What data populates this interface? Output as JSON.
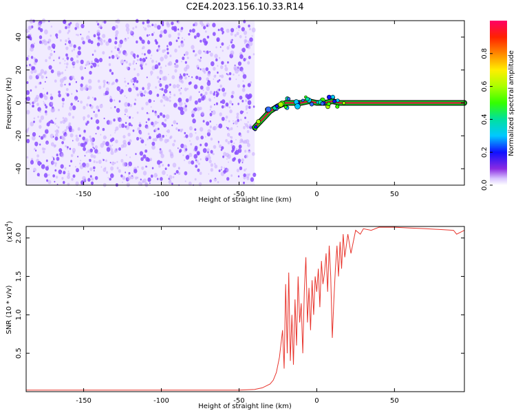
{
  "title": "C2E4.2023.156.10.33.R14",
  "colors": {
    "noise": "#8a4dff",
    "noise_light": "#c7aaff",
    "snr_line": "#e8332b",
    "signal_core": "#e0103a",
    "signal_edge": "#10c020"
  },
  "chart_data": [
    {
      "type": "heatmap",
      "xlabel": "Height of straight line (km)",
      "ylabel": "Frequency (Hz)",
      "xlim": [
        -187,
        95
      ],
      "ylim": [
        -50,
        50
      ],
      "xticks": [
        -150,
        -100,
        -50,
        0,
        50
      ],
      "yticks": [
        -40,
        -20,
        0,
        20,
        40
      ],
      "noise_region_x": [
        -187,
        -40
      ],
      "signal_track": {
        "x": [
          -40,
          -35,
          -30,
          -25,
          -20,
          -15,
          -10,
          -5,
          0,
          5,
          10,
          15,
          20,
          40,
          60,
          80,
          95
        ],
        "y": [
          -15,
          -10,
          -5,
          -2,
          0,
          0,
          0,
          1,
          0,
          0,
          1,
          0,
          0,
          0,
          0,
          0,
          0
        ]
      },
      "colorbar": {
        "label": "Normalized spectral amplitude",
        "ticks": [
          0.0,
          0.2,
          0.4,
          0.6,
          0.8
        ],
        "range": [
          0.0,
          1.0
        ]
      }
    },
    {
      "type": "line",
      "xlabel": "Height of straight line (km)",
      "ylabel": "SNR (10 * v/v)",
      "scale_label": "(x10",
      "scale_exp": "4",
      "scale_close": ")",
      "xlim": [
        -187,
        95
      ],
      "ylim": [
        0,
        2.15
      ],
      "xticks": [
        -150,
        -100,
        -50,
        0,
        50
      ],
      "yticks": [
        0.5,
        1.0,
        1.5,
        2.0
      ],
      "ytick_labels": [
        "0.5",
        "1.0",
        "1.5",
        "2.0"
      ],
      "series": [
        {
          "x": [
            -187,
            -100,
            -50,
            -40,
            -35,
            -30,
            -28,
            -26,
            -24,
            -22,
            -21,
            -20,
            -19,
            -18,
            -17,
            -16,
            -15,
            -14,
            -13,
            -12,
            -11,
            -10,
            -9,
            -8,
            -7,
            -6,
            -5,
            -4,
            -3,
            -2,
            -1,
            0,
            1,
            2,
            3,
            4,
            5,
            6,
            7,
            8,
            9,
            10,
            11,
            12,
            13,
            14,
            15,
            16,
            17,
            18,
            20,
            22,
            25,
            28,
            30,
            35,
            40,
            50,
            60,
            70,
            80,
            88,
            90,
            95
          ],
          "values": [
            0.02,
            0.02,
            0.02,
            0.03,
            0.05,
            0.1,
            0.15,
            0.25,
            0.45,
            0.8,
            0.3,
            1.4,
            0.5,
            1.55,
            0.4,
            1.0,
            0.35,
            1.2,
            0.6,
            1.5,
            0.9,
            1.15,
            0.5,
            1.3,
            1.75,
            0.9,
            1.35,
            0.8,
            1.45,
            1.0,
            1.5,
            1.3,
            1.6,
            1.1,
            1.7,
            1.4,
            1.55,
            1.8,
            1.3,
            1.9,
            1.5,
            0.7,
            1.2,
            1.6,
            1.9,
            1.5,
            1.95,
            1.6,
            2.05,
            1.75,
            2.05,
            1.8,
            2.1,
            2.05,
            2.12,
            2.1,
            2.14,
            2.14,
            2.13,
            2.12,
            2.11,
            2.1,
            2.05,
            2.1
          ]
        }
      ]
    }
  ]
}
